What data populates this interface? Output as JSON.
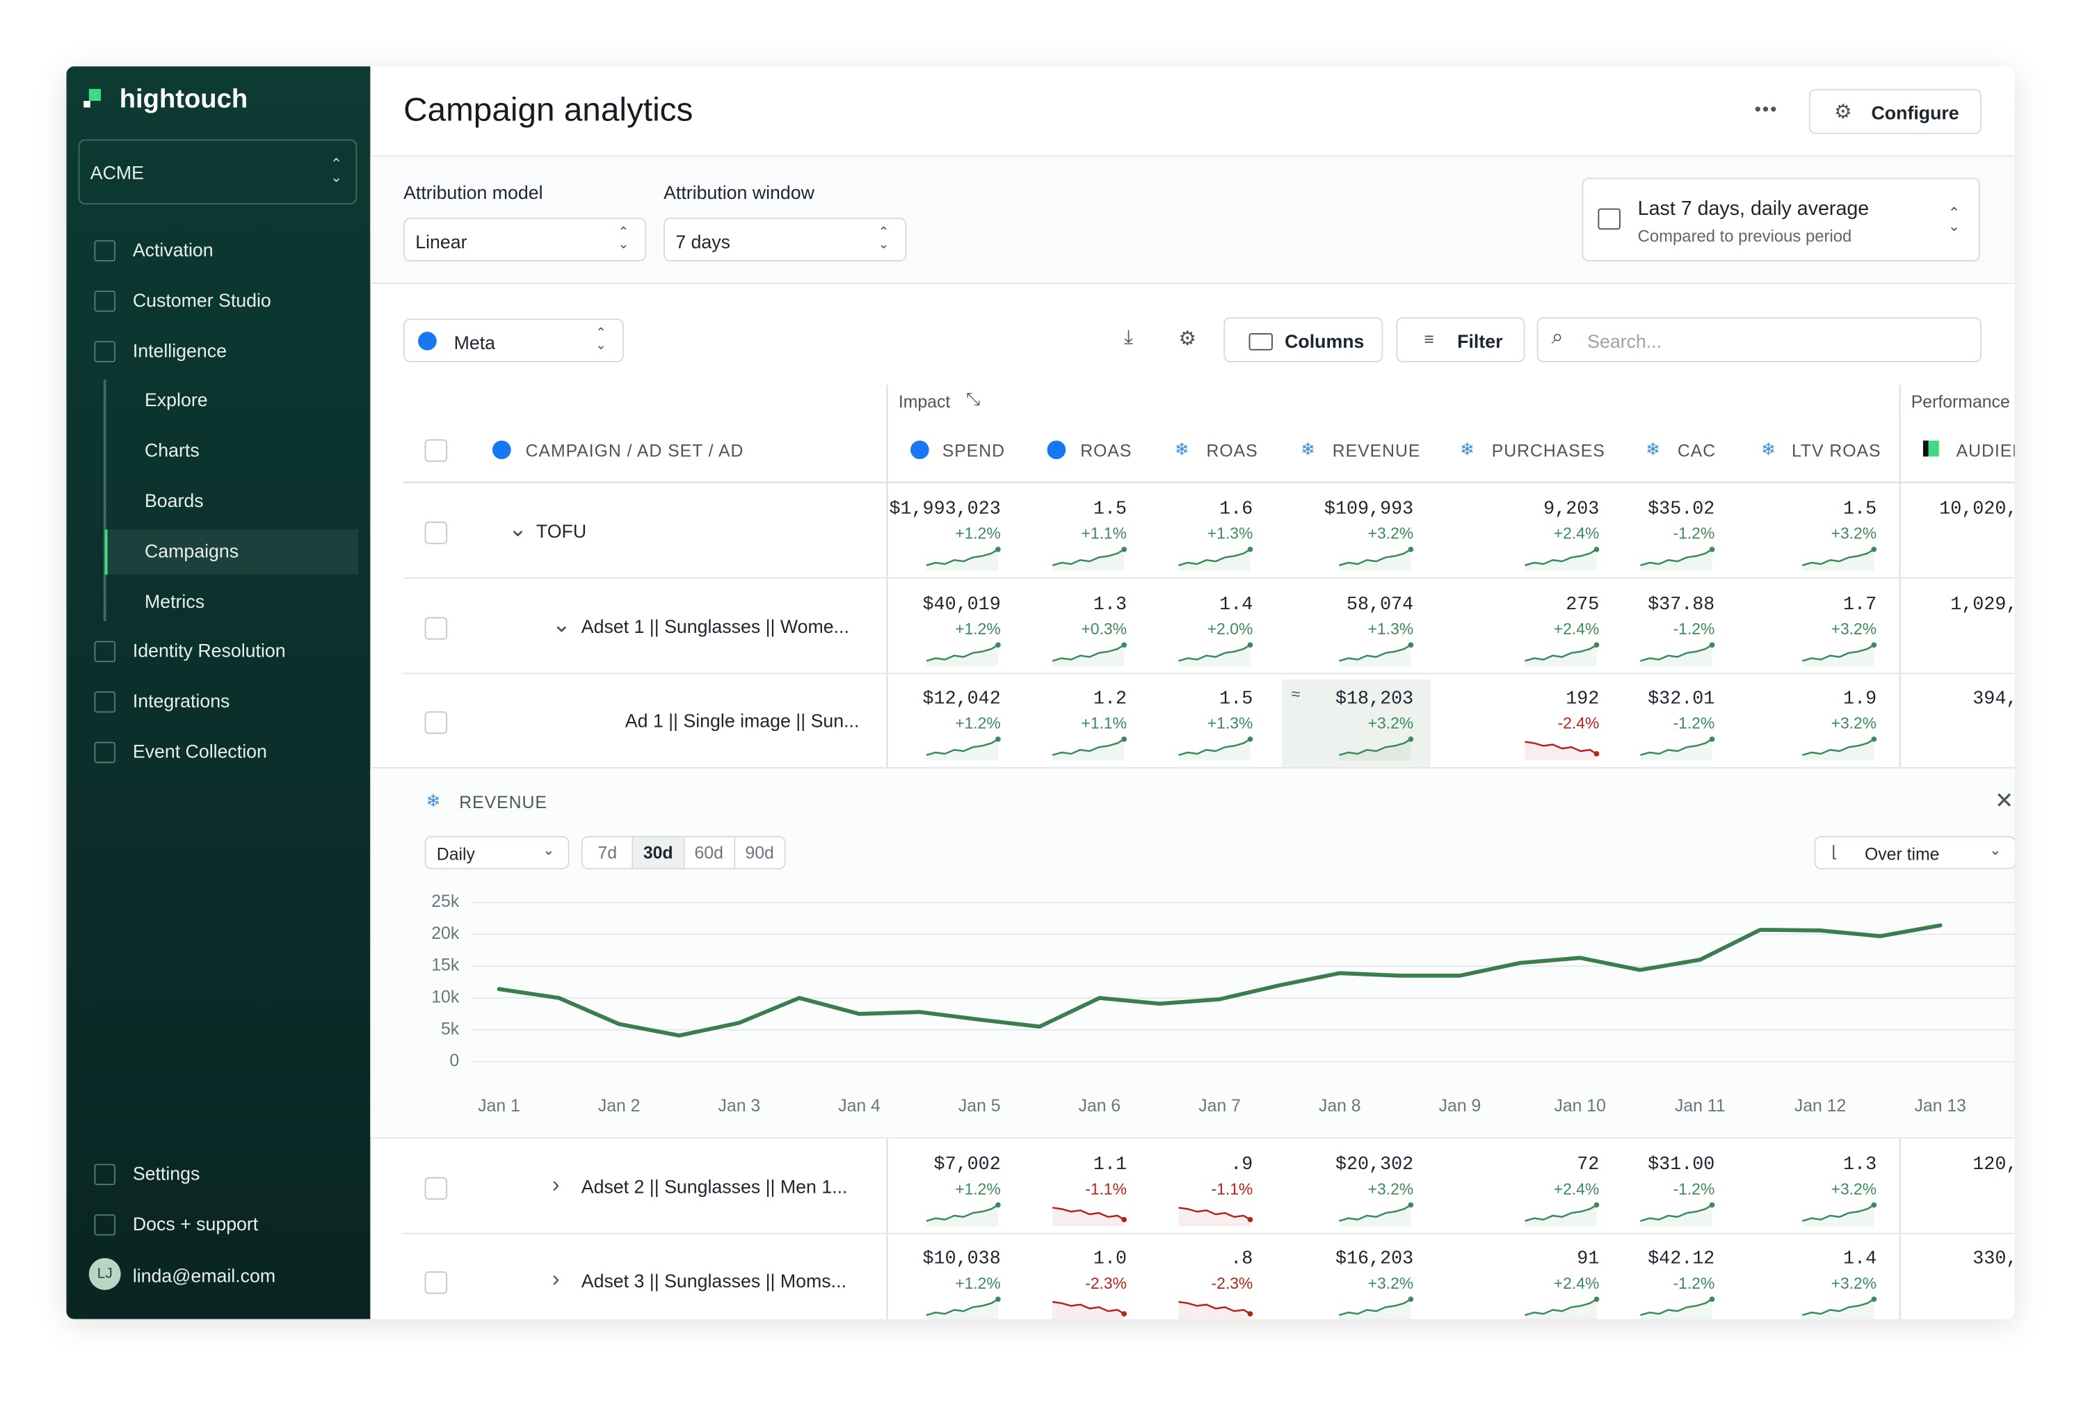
{
  "sidebar": {
    "brand": "hightouch",
    "workspace": "ACME",
    "nav": [
      "Activation",
      "Customer Studio",
      "Intelligence"
    ],
    "subnav": [
      "Explore",
      "Charts",
      "Boards",
      "Campaigns",
      "Metrics"
    ],
    "active": "Campaigns",
    "nav2": [
      "Identity Resolution",
      "Integrations",
      "Event Collection"
    ],
    "footer": [
      "Settings",
      "Docs + support"
    ],
    "user": {
      "initials": "LJ",
      "email": "linda@email.com"
    }
  },
  "header": {
    "title": "Campaign analytics",
    "button": "Configure"
  },
  "filters": {
    "attribution_model": {
      "label": "Attribution model",
      "value": "Linear"
    },
    "attribution_window": {
      "label": "Attribution window",
      "value": "7 days"
    },
    "date_range": {
      "title": "Last 7 days, daily average",
      "subtitle": "Compared to previous period"
    }
  },
  "toolbar": {
    "source": "Meta",
    "columns": "Columns",
    "filter": "Filter",
    "search_placeholder": "Search..."
  },
  "table": {
    "groups": [
      "Impact",
      "Performance"
    ],
    "columns": [
      "CAMPAIGN / AD SET / AD",
      "SPEND",
      "ROAS",
      "ROAS",
      "REVENUE",
      "PURCHASES",
      "CAC",
      "LTV ROAS",
      "AUDIENCE"
    ],
    "rows": [
      {
        "name": "TOFU",
        "cells": [
          {
            "value": "$1,993,023",
            "change": "+1.2%",
            "color": "#3b8a5a"
          },
          {
            "value": "1.5",
            "change": "+1.1%",
            "color": "#3b8a5a"
          },
          {
            "value": "1.6",
            "change": "+1.3%",
            "color": "#3b8a5a"
          },
          {
            "value": "$109,993",
            "change": "+3.2%",
            "color": "#3b8a5a"
          },
          {
            "value": "9,203",
            "change": "+2.4%",
            "color": "#3b8a5a"
          },
          {
            "value": "$35.02",
            "change": "-1.2%",
            "color": "#3b8a5a"
          },
          {
            "value": "1.5",
            "change": "+3.2%",
            "color": "#3b8a5a"
          }
        ],
        "audience": "10,020,"
      },
      {
        "name": "Adset 1 || Sunglasses || Wome...",
        "cells": [
          {
            "value": "$40,019",
            "change": "+1.2%",
            "color": "#3b8a5a"
          },
          {
            "value": "1.3",
            "change": "+0.3%",
            "color": "#3b8a5a"
          },
          {
            "value": "1.4",
            "change": "+2.0%",
            "color": "#3b8a5a"
          },
          {
            "value": "58,074",
            "change": "+1.3%",
            "color": "#3b8a5a"
          },
          {
            "value": "275",
            "change": "+2.4%",
            "color": "#3b8a5a"
          },
          {
            "value": "$37.88",
            "change": "-1.2%",
            "color": "#3b8a5a"
          },
          {
            "value": "1.7",
            "change": "+3.2%",
            "color": "#3b8a5a"
          }
        ],
        "audience": "1,029,"
      },
      {
        "name": "Ad 1 || Single image || Sun...",
        "cells": [
          {
            "value": "$12,042",
            "change": "+1.2%",
            "color": "#3b8a5a"
          },
          {
            "value": "1.2",
            "change": "+1.1%",
            "color": "#3b8a5a"
          },
          {
            "value": "1.5",
            "change": "+1.3%",
            "color": "#3b8a5a"
          },
          {
            "value": "$18,203",
            "change": "+3.2%",
            "color": "#3b8a5a"
          },
          {
            "value": "192",
            "change": "-2.4%",
            "color": "#b42318"
          },
          {
            "value": "$32.01",
            "change": "-1.2%",
            "color": "#3b8a5a"
          },
          {
            "value": "1.9",
            "change": "+3.2%",
            "color": "#3b8a5a"
          }
        ],
        "audience": "394,"
      },
      {
        "name": "Adset 2 || Sunglasses || Men 1...",
        "cells": [
          {
            "value": "$7,002",
            "change": "+1.2%",
            "color": "#3b8a5a"
          },
          {
            "value": "1.1",
            "change": "-1.1%",
            "color": "#b42318"
          },
          {
            "value": ".9",
            "change": "-1.1%",
            "color": "#b42318"
          },
          {
            "value": "$20,302",
            "change": "+3.2%",
            "color": "#3b8a5a"
          },
          {
            "value": "72",
            "change": "+2.4%",
            "color": "#3b8a5a"
          },
          {
            "value": "$31.00",
            "change": "-1.2%",
            "color": "#3b8a5a"
          },
          {
            "value": "1.3",
            "change": "+3.2%",
            "color": "#3b8a5a"
          }
        ],
        "audience": "120,"
      },
      {
        "name": "Adset 3 || Sunglasses || Moms...",
        "cells": [
          {
            "value": "$10,038",
            "change": "+1.2%",
            "color": "#3b8a5a"
          },
          {
            "value": "1.0",
            "change": "-2.3%",
            "color": "#b42318"
          },
          {
            "value": ".8",
            "change": "-2.3%",
            "color": "#b42318"
          },
          {
            "value": "$16,203",
            "change": "+3.2%",
            "color": "#3b8a5a"
          },
          {
            "value": "91",
            "change": "+2.4%",
            "color": "#3b8a5a"
          },
          {
            "value": "$42.12",
            "change": "-1.2%",
            "color": "#3b8a5a"
          },
          {
            "value": "1.4",
            "change": "+3.2%",
            "color": "#3b8a5a"
          }
        ],
        "audience": "330,"
      }
    ]
  },
  "chart_panel": {
    "metric": "REVENUE",
    "granularity": "Daily",
    "ranges": [
      "7d",
      "30d",
      "60d",
      "90d"
    ],
    "active_range": "30d",
    "view": "Over time"
  },
  "chart_data": {
    "type": "line",
    "color": "#3a7d4e",
    "grid": true,
    "categories": [
      "Jan 1",
      null,
      "Jan 2",
      null,
      "Jan 3",
      null,
      "Jan 4",
      null,
      "Jan 5",
      null,
      "Jan 6",
      null,
      "Jan 7",
      null,
      "Jan 8",
      null,
      "Jan 9",
      null,
      "Jan 10",
      null,
      "Jan 11",
      null,
      "Jan 12",
      null,
      "Jan 13"
    ],
    "values": [
      11400,
      10000,
      5900,
      4100,
      6100,
      10000,
      7500,
      7800,
      6600,
      5500,
      10000,
      9100,
      9800,
      12000,
      13900,
      13500,
      13500,
      15500,
      16300,
      14400,
      16000,
      20700,
      20600,
      19700,
      21400
    ],
    "ylim": [
      0,
      25000
    ],
    "yticks": [
      0,
      {
        "value": 5000,
        "label": "5k"
      },
      {
        "value": 10000,
        "label": "10k"
      },
      {
        "value": 15000,
        "label": "15k"
      },
      {
        "value": 20000,
        "label": "20k"
      },
      {
        "value": 25000,
        "label": "25k"
      }
    ]
  }
}
